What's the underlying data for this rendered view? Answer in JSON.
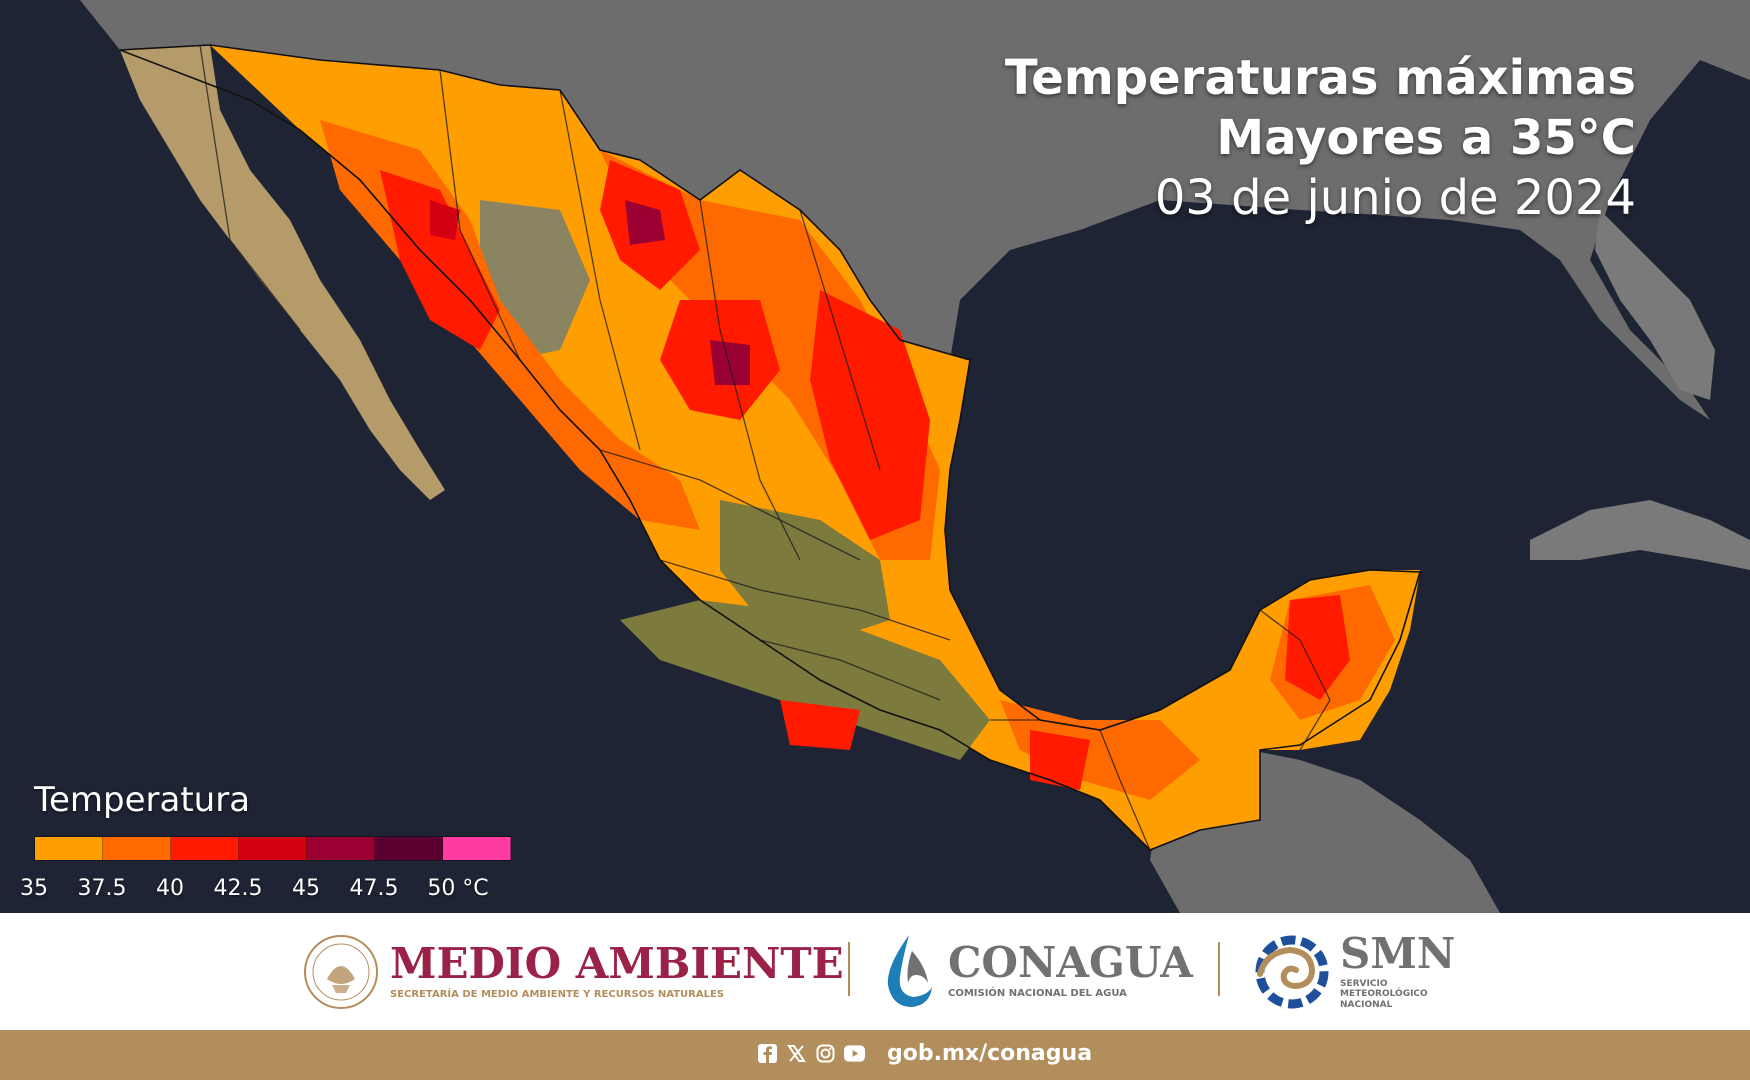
{
  "title": {
    "line1": "Temperaturas máximas",
    "line2": "Mayores a 35°C",
    "line3": "03 de junio de 2024"
  },
  "legend": {
    "title": "Temperatura",
    "colors": [
      "#ff9e00",
      "#ff6a00",
      "#ff1a00",
      "#d20012",
      "#9b0033",
      "#5c0030",
      "#ff3aa0"
    ],
    "ticks": [
      "35",
      "37.5",
      "40",
      "42.5",
      "45",
      "47.5",
      "50 °C"
    ]
  },
  "map": {
    "ocean_color": "#1e2434",
    "land_color": "#6d6d6d",
    "bare_land_color": "#b59a6a",
    "vegetation_color": "#7d7a3e"
  },
  "footer": {
    "medio_ambiente": {
      "name": "MEDIO AMBIENTE",
      "subtitle": "SECRETARÍA DE MEDIO AMBIENTE Y RECURSOS NATURALES",
      "color": "#9b2247"
    },
    "conagua": {
      "name": "CONAGUA",
      "subtitle": "COMISIÓN NACIONAL DEL AGUA",
      "color": "#6f7173"
    },
    "smn": {
      "name": "SMN",
      "subtitle_lines": [
        "SERVICIO",
        "METEOROLÓGICO",
        "NACIONAL"
      ],
      "color": "#6f7173"
    },
    "gold_color": "#b38e5d",
    "social_icons": [
      "facebook-icon",
      "x-icon",
      "instagram-icon",
      "youtube-icon"
    ],
    "link": "gob.mx/conagua"
  }
}
